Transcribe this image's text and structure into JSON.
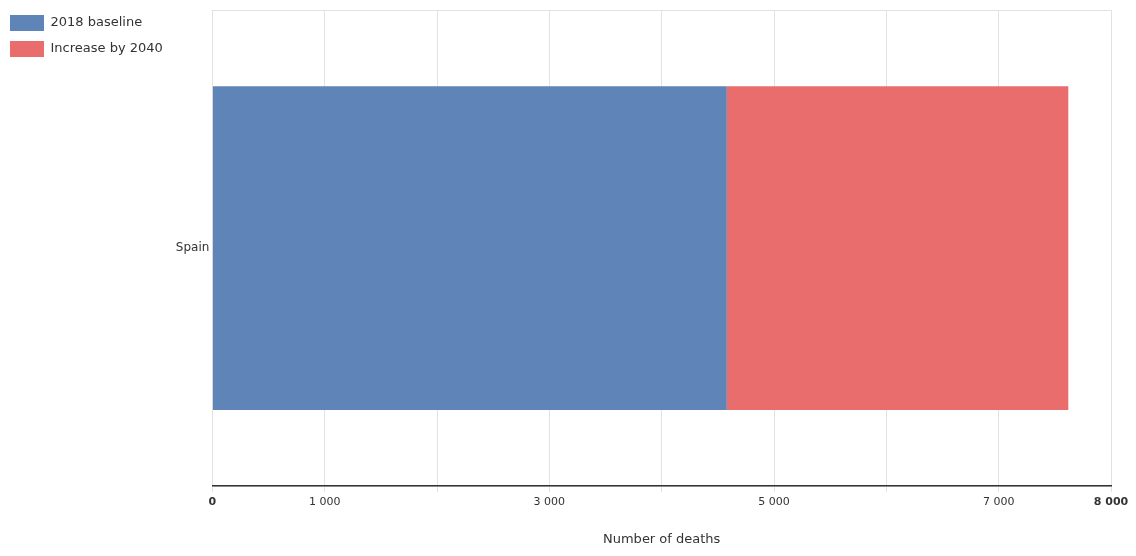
{
  "chart_data": {
    "type": "bar",
    "orientation": "horizontal",
    "stacked": true,
    "xlabel": "Number of deaths",
    "categories": [
      "Spain"
    ],
    "series": [
      {
        "name": "2018 baseline",
        "color": "#5f85b8",
        "values": [
          4580
        ]
      },
      {
        "name": "Increase by 2040",
        "color": "#e86d6c",
        "values": [
          3040
        ]
      }
    ],
    "xlim": [
      0,
      8000
    ],
    "xticks": [
      {
        "value": 0,
        "label": "0"
      },
      {
        "value": 1000,
        "label": "1 000"
      },
      {
        "value": 2000,
        "label": null
      },
      {
        "value": 3000,
        "label": "3 000"
      },
      {
        "value": 4000,
        "label": null
      },
      {
        "value": 5000,
        "label": "5 000"
      },
      {
        "value": 6000,
        "label": null
      },
      {
        "value": 7000,
        "label": "7 000"
      },
      {
        "value": 8000,
        "label": "8 000"
      }
    ],
    "grid": true,
    "legend": "top left"
  }
}
